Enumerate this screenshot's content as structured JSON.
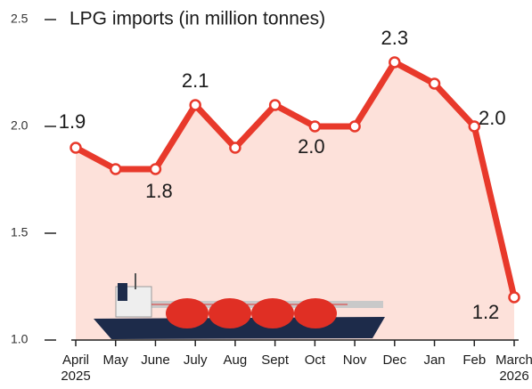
{
  "chart_data": {
    "type": "line",
    "title": "LPG imports (in million tonnes)",
    "categories": [
      "April 2025",
      "May",
      "June",
      "July",
      "Aug",
      "Sept",
      "Oct",
      "Nov",
      "Dec",
      "Jan",
      "Feb",
      "March 2026"
    ],
    "values": [
      1.9,
      1.8,
      1.8,
      2.1,
      1.9,
      2.1,
      2.0,
      2.0,
      2.3,
      2.2,
      2.0,
      1.2
    ],
    "value_labels": [
      "1.9",
      null,
      "1.8",
      "2.1",
      null,
      null,
      "2.0",
      null,
      "2.3",
      null,
      "2.0",
      "1.2"
    ],
    "color": "#e8392b",
    "area_color": "#fde1da",
    "ylim": [
      1.0,
      2.5
    ],
    "yticks": [
      {
        "value": 1.0,
        "label": "1.0"
      },
      1.5,
      {
        "value": 2.0,
        "label": "2.0"
      },
      2.5
    ]
  }
}
